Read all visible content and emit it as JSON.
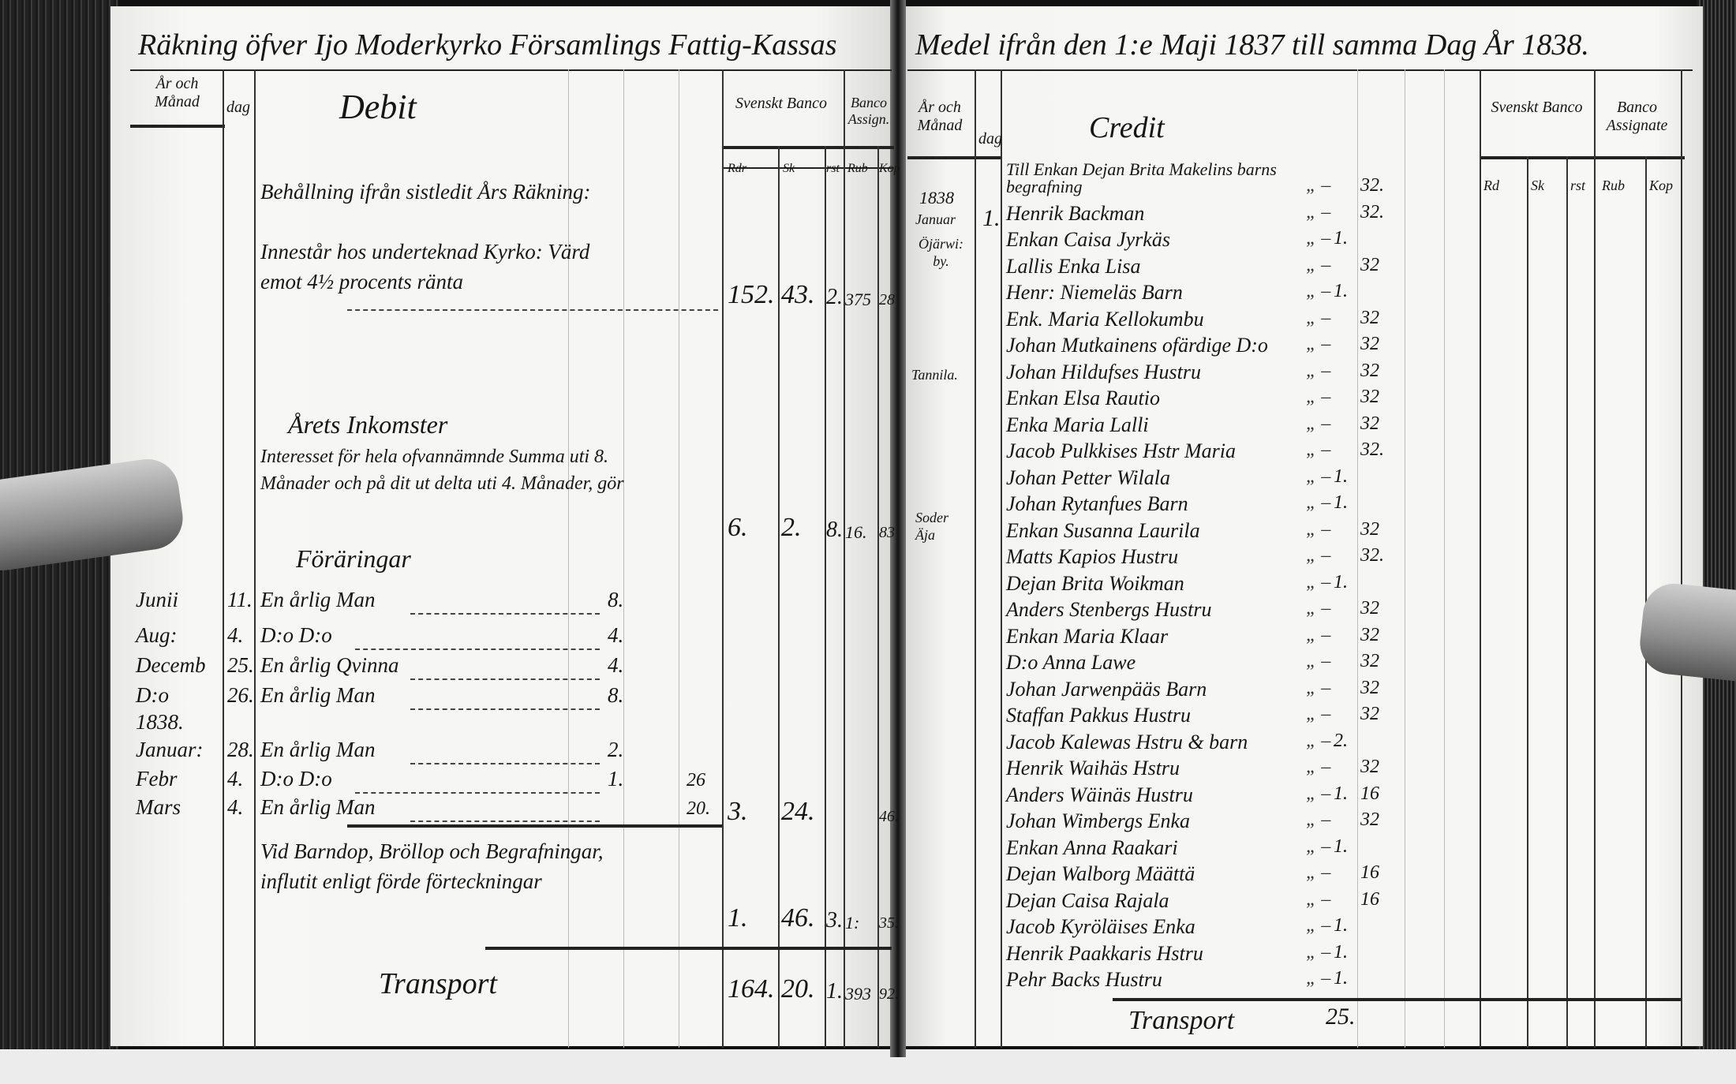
{
  "title": {
    "left": "Räkning öfver Ijo Moderkyrko Församlings Fattig-Kassas",
    "right": "Medel ifrån den 1:e Maji 1837 till samma Dag År 1838."
  },
  "left_page": {
    "col_headers": {
      "year_month": "År och Månad",
      "day": "dag",
      "section": "Debit",
      "svenskt_banco": "Svenskt Banco",
      "banco_assignat": "Banco Assign.",
      "units": [
        "Rdr",
        "Sk",
        "rst",
        "Rub",
        "Kop"
      ]
    },
    "balance": {
      "heading": "Behållning ifrån sistledit Års Räkning:",
      "text": "Innestår hos underteknad Kyrko: Värd emot 4½ procents ränta",
      "amounts": [
        "152.",
        "43.",
        "2.",
        "375",
        "28"
      ]
    },
    "income": {
      "heading": "Årets Inkomster",
      "text": "Interesset för hela ofvannämnde Summa uti 8. Månader och på dit ut delta uti 4. Månader, gör",
      "amounts": [
        "6.",
        "2.",
        "8.",
        "16.",
        "83"
      ]
    },
    "donations": {
      "heading": "Föräringar",
      "rows": [
        {
          "month": "Junii",
          "day": "11.",
          "text": "En årlig Man",
          "rd": "8.",
          "sk": ""
        },
        {
          "month": "Aug:",
          "day": "4.",
          "text": "D:o D:o",
          "rd": "4.",
          "sk": ""
        },
        {
          "month": "Decemb",
          "day": "25.",
          "text": "En årlig Qvinna",
          "rd": "4.",
          "sk": ""
        },
        {
          "month": "D:o",
          "day": "26.",
          "text": "En årlig Man",
          "rd": "8.",
          "sk": ""
        },
        {
          "month": "1838.",
          "day": "",
          "text": "",
          "rd": "",
          "sk": ""
        },
        {
          "month": "Januar:",
          "day": "28.",
          "text": "En årlig Man",
          "rd": "2.",
          "sk": ""
        },
        {
          "month": "Febr",
          "day": "4.",
          "text": "D:o D:o",
          "rd": "1.",
          "sk": "26"
        },
        {
          "month": "Mars",
          "day": "4.",
          "text": "En årlig Man",
          "rd": "",
          "sk": "20."
        }
      ],
      "amounts": [
        "3.",
        "24.",
        "",
        "",
        "46."
      ]
    },
    "ceremonies": {
      "text": "Vid Barndop, Bröllop och Begrafningar, influtit enligt förde förteckningar",
      "amounts": [
        "1.",
        "46.",
        "3.",
        "1:",
        "35."
      ]
    },
    "transport": {
      "label": "Transport",
      "amounts": [
        "164.",
        "20.",
        "1.",
        "393",
        "92."
      ]
    }
  },
  "right_page": {
    "col_headers": {
      "year_month": "År och Månad",
      "day": "dag",
      "section": "Credit",
      "svenskt_banco": "Svenskt Banco",
      "banco_assignat": "Banco Assignate",
      "units": [
        "Rd",
        "Sk",
        "rst",
        "Rub",
        "Kop"
      ]
    },
    "dates": {
      "year": "1838",
      "month": "Januar",
      "day": "1.",
      "place1": "Öjärwi: by.",
      "place2": "Tannila.",
      "place3": "Soder Äja"
    },
    "entries": [
      {
        "name": "Till Enkan Dejan Brita Makelins barns begrafning",
        "rd": "",
        "sk": "32."
      },
      {
        "name": "Henrik Backman",
        "rd": "",
        "sk": "32."
      },
      {
        "name": "Enkan Caisa Jyrkäs",
        "rd": "1.",
        "sk": ""
      },
      {
        "name": "Lallis Enka Lisa",
        "rd": "",
        "sk": "32"
      },
      {
        "name": "Henr: Niemeläs Barn",
        "rd": "1.",
        "sk": ""
      },
      {
        "name": "Enk. Maria Kellokumbu",
        "rd": "",
        "sk": "32"
      },
      {
        "name": "Johan Mutkainens ofärdige D:o",
        "rd": "",
        "sk": "32"
      },
      {
        "name": "Johan Hildufses Hustru",
        "rd": "",
        "sk": "32"
      },
      {
        "name": "Enkan Elsa Rautio",
        "rd": "",
        "sk": "32"
      },
      {
        "name": "Enka Maria Lalli",
        "rd": "",
        "sk": "32"
      },
      {
        "name": "Jacob Pulkkises Hstr Maria",
        "rd": "",
        "sk": "32."
      },
      {
        "name": "Johan Petter Wilala",
        "rd": "1.",
        "sk": ""
      },
      {
        "name": "Johan Rytanfues Barn",
        "rd": "1.",
        "sk": ""
      },
      {
        "name": "Enkan Susanna Laurila",
        "rd": "",
        "sk": "32"
      },
      {
        "name": "Matts Kapios Hustru",
        "rd": "",
        "sk": "32."
      },
      {
        "name": "Dejan Brita Woikman",
        "rd": "1.",
        "sk": ""
      },
      {
        "name": "Anders Stenbergs Hustru",
        "rd": "",
        "sk": "32"
      },
      {
        "name": "Enkan Maria Klaar",
        "rd": "",
        "sk": "32"
      },
      {
        "name": "D:o Anna Lawe",
        "rd": "",
        "sk": "32"
      },
      {
        "name": "Johan Jarwenpääs Barn",
        "rd": "",
        "sk": "32"
      },
      {
        "name": "Staffan Pakkus Hustru",
        "rd": "",
        "sk": "32"
      },
      {
        "name": "Jacob Kalewas Hstru & barn",
        "rd": "2.",
        "sk": ""
      },
      {
        "name": "Henrik Waihäs Hstru",
        "rd": "",
        "sk": "32"
      },
      {
        "name": "Anders Wäinäs Hustru",
        "rd": "1.",
        "sk": "16"
      },
      {
        "name": "Johan Wimbergs Enka",
        "rd": "",
        "sk": "32"
      },
      {
        "name": "Enkan Anna Raakari",
        "rd": "1.",
        "sk": ""
      },
      {
        "name": "Dejan Walborg Määttä",
        "rd": "",
        "sk": "16"
      },
      {
        "name": "Dejan Caisa Rajala",
        "rd": "",
        "sk": "16"
      },
      {
        "name": "Jacob Kyröläises Enka",
        "rd": "1.",
        "sk": ""
      },
      {
        "name": "Henrik Paakkaris Hstru",
        "rd": "1.",
        "sk": ""
      },
      {
        "name": "Pehr Backs Hustru",
        "rd": "1.",
        "sk": ""
      }
    ],
    "transport": {
      "label": "Transport",
      "rd": "25."
    }
  }
}
